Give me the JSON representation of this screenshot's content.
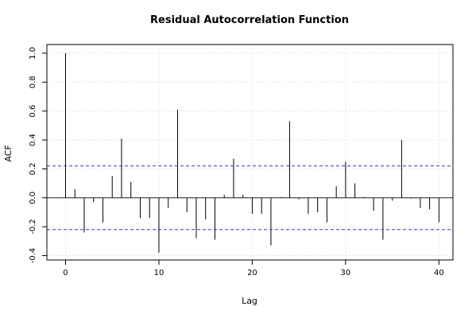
{
  "chart_data": {
    "type": "bar",
    "title": "Residual Autocorrelation Function",
    "xlabel": "Lag",
    "ylabel": "ACF",
    "xlim": [
      -2,
      41.5
    ],
    "ylim": [
      -0.43,
      1.06
    ],
    "x_ticks": [
      0,
      10,
      20,
      30,
      40
    ],
    "y_ticks": [
      -0.4,
      -0.2,
      0.0,
      0.2,
      0.4,
      0.6,
      0.8,
      1.0
    ],
    "grid": true,
    "confidence_bounds": [
      0.22,
      -0.22
    ],
    "lags": [
      0,
      1,
      2,
      3,
      4,
      5,
      6,
      7,
      8,
      9,
      10,
      11,
      12,
      13,
      14,
      15,
      16,
      17,
      18,
      19,
      20,
      21,
      22,
      23,
      24,
      25,
      26,
      27,
      28,
      29,
      30,
      31,
      32,
      33,
      34,
      35,
      36,
      37,
      38,
      39,
      40
    ],
    "values": [
      1.0,
      0.06,
      -0.24,
      -0.03,
      -0.17,
      0.15,
      0.41,
      0.11,
      -0.14,
      -0.14,
      -0.38,
      -0.07,
      0.61,
      -0.1,
      -0.28,
      -0.15,
      -0.29,
      0.02,
      0.27,
      0.02,
      -0.11,
      -0.11,
      -0.33,
      0.005,
      0.53,
      -0.01,
      -0.11,
      -0.1,
      -0.17,
      0.08,
      0.25,
      0.1,
      0.005,
      -0.09,
      -0.29,
      -0.02,
      0.4,
      -0.005,
      -0.07,
      -0.08,
      -0.17
    ],
    "colors": {
      "bounds": "#3333cc",
      "lines": "#000000",
      "grid": "#d3d3d3"
    }
  }
}
